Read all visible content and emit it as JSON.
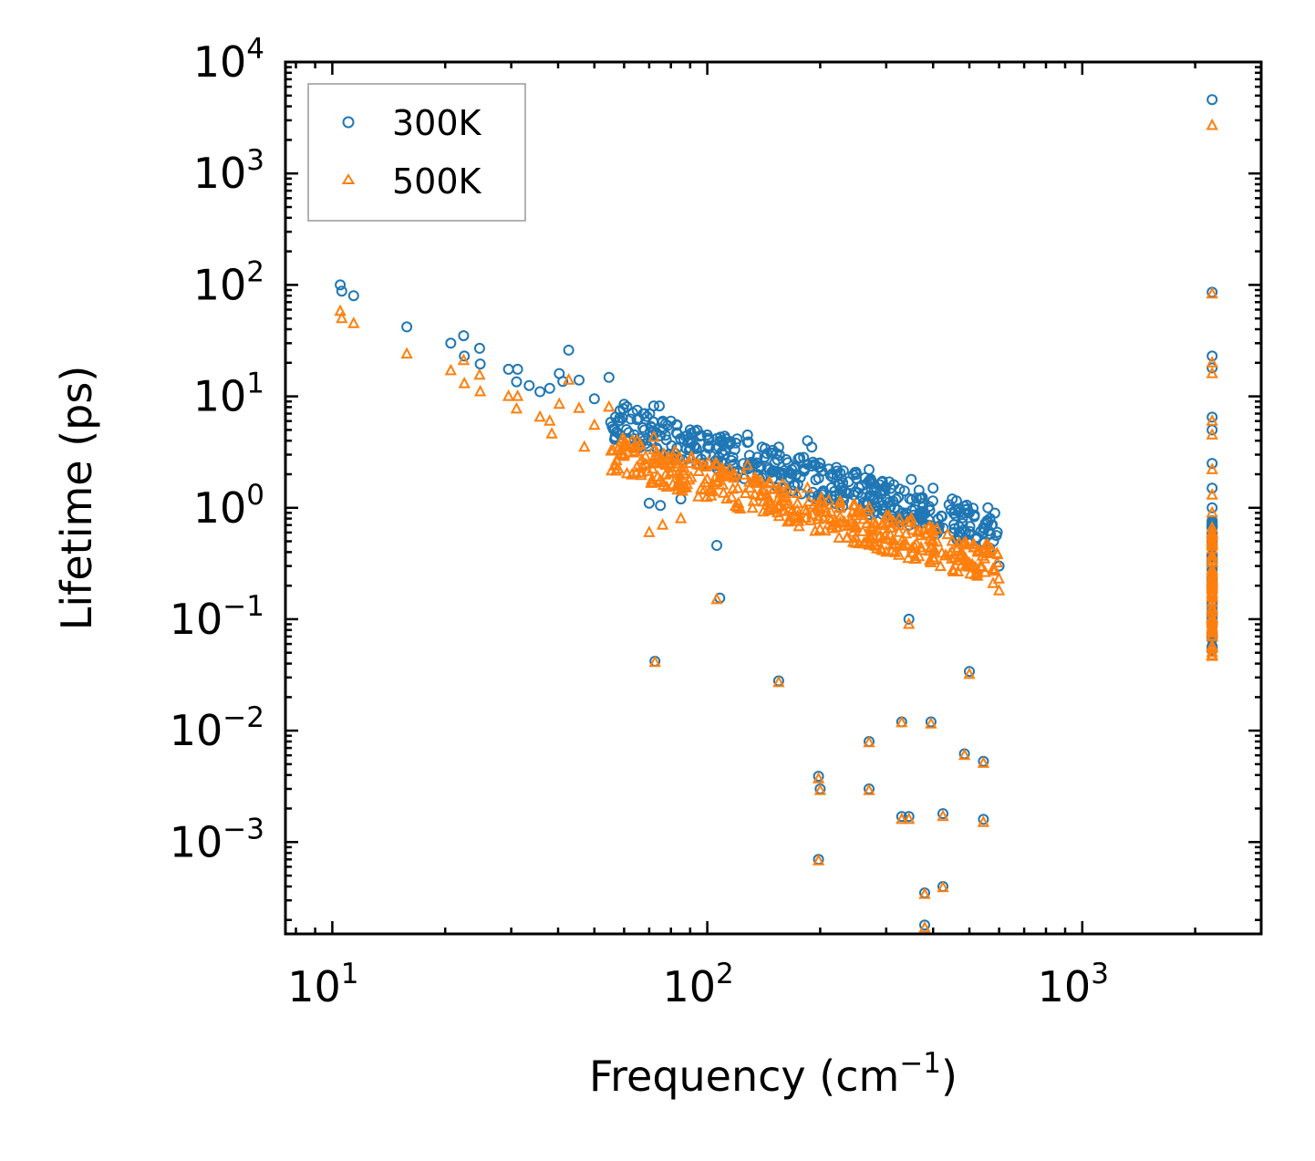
{
  "chart_data": {
    "type": "scatter",
    "title": "",
    "xlabel": "Frequency (cm",
    "xlabel_sup": "−1",
    "xlabel_tail": ")",
    "ylabel": "Lifetime (ps)",
    "xscale": "log",
    "yscale": "log",
    "xlim": [
      7.5,
      3000
    ],
    "ylim": [
      0.00015,
      10000
    ],
    "x_ticks": [
      {
        "value": 10,
        "base": "10",
        "exp": "1"
      },
      {
        "value": 100,
        "base": "10",
        "exp": "2"
      },
      {
        "value": 1000,
        "base": "10",
        "exp": "3"
      }
    ],
    "y_ticks": [
      {
        "value": 0.001,
        "base": "10",
        "exp": "−3"
      },
      {
        "value": 0.01,
        "base": "10",
        "exp": "−2"
      },
      {
        "value": 0.1,
        "base": "10",
        "exp": "−1"
      },
      {
        "value": 1,
        "base": "10",
        "exp": "0"
      },
      {
        "value": 10,
        "base": "10",
        "exp": "1"
      },
      {
        "value": 100,
        "base": "10",
        "exp": "2"
      },
      {
        "value": 1000,
        "base": "10",
        "exp": "3"
      },
      {
        "value": 10000,
        "base": "10",
        "exp": "4"
      }
    ],
    "legend_position": "top-left",
    "grid": false,
    "series": [
      {
        "name": "300K",
        "marker": "circle",
        "color": "#1f77b4",
        "points": [
          [
            10.5,
            100
          ],
          [
            10.6,
            88
          ],
          [
            11.4,
            80
          ],
          [
            15.8,
            42
          ],
          [
            20.7,
            30
          ],
          [
            22.4,
            35
          ],
          [
            22.5,
            23
          ],
          [
            24.7,
            27
          ],
          [
            24.8,
            19.5
          ],
          [
            29.5,
            17.5
          ],
          [
            31.2,
            17.5
          ],
          [
            31.0,
            13.5
          ],
          [
            33.5,
            12.5
          ],
          [
            35.8,
            11
          ],
          [
            38.0,
            11.8
          ],
          [
            40.3,
            16
          ],
          [
            41.2,
            13.6
          ],
          [
            42.7,
            26
          ],
          [
            45.5,
            14
          ],
          [
            50.0,
            9.5
          ],
          [
            54.7,
            14.8
          ],
          [
            60.0,
            8.5
          ],
          [
            65.0,
            7.5
          ],
          [
            68.0,
            7.0
          ],
          [
            70.0,
            1.1
          ],
          [
            72.0,
            8.2
          ],
          [
            74.5,
            8.2
          ],
          [
            75.0,
            1.05
          ],
          [
            80.0,
            6.0
          ],
          [
            85.0,
            1.2
          ],
          [
            90.0,
            5.0
          ],
          [
            100.0,
            4.5
          ],
          [
            106.0,
            0.46
          ],
          [
            108.0,
            0.155
          ],
          [
            110.0,
            4.0
          ],
          [
            128.0,
            4.5
          ],
          [
            140.0,
            3.5
          ],
          [
            155.0,
            3.5
          ],
          [
            185.0,
            4.0
          ],
          [
            190.0,
            3.5
          ],
          [
            200.0,
            2.5
          ],
          [
            250.0,
            2.0
          ],
          [
            270.0,
            2.2
          ],
          [
            300.0,
            1.2
          ],
          [
            350.0,
            1.8
          ],
          [
            400.0,
            1.5
          ],
          [
            450.0,
            1.2
          ],
          [
            500.0,
            0.9
          ],
          [
            560.0,
            1.0
          ],
          [
            580.0,
            0.5
          ],
          [
            600.0,
            0.3
          ],
          [
            72.5,
            0.042
          ],
          [
            155.0,
            0.028
          ],
          [
            198.0,
            0.0039
          ],
          [
            200.0,
            0.003
          ],
          [
            198.0,
            0.0007
          ],
          [
            270.0,
            0.008
          ],
          [
            270.0,
            0.003
          ],
          [
            330.0,
            0.012
          ],
          [
            330.0,
            0.0017
          ],
          [
            345.0,
            0.0017
          ],
          [
            345.0,
            0.1
          ],
          [
            380.0,
            0.00035
          ],
          [
            380.0,
            0.00018
          ],
          [
            395.0,
            0.012
          ],
          [
            425.0,
            0.0018
          ],
          [
            425.0,
            0.0004
          ],
          [
            485.0,
            0.0062
          ],
          [
            500.0,
            0.034
          ],
          [
            545.0,
            0.0053
          ],
          [
            545.0,
            0.0016
          ],
          [
            2220,
            4600
          ],
          [
            2220,
            86
          ],
          [
            2220,
            23
          ],
          [
            2220,
            18
          ],
          [
            2220,
            6.5
          ],
          [
            2220,
            5.0
          ],
          [
            2220,
            2.5
          ],
          [
            2220,
            1.5
          ],
          [
            2220,
            1.0
          ],
          [
            2220,
            0.6
          ]
        ]
      },
      {
        "name": "500K",
        "marker": "triangle",
        "color": "#ff7f0e",
        "points": [
          [
            10.5,
            58
          ],
          [
            10.6,
            50
          ],
          [
            11.4,
            45
          ],
          [
            15.8,
            24
          ],
          [
            20.7,
            17
          ],
          [
            22.4,
            21
          ],
          [
            22.5,
            13
          ],
          [
            24.7,
            15.5
          ],
          [
            24.8,
            11
          ],
          [
            29.5,
            10
          ],
          [
            31.2,
            10
          ],
          [
            31.0,
            7.7
          ],
          [
            35.8,
            6.5
          ],
          [
            38.0,
            6.0
          ],
          [
            38.5,
            4.6
          ],
          [
            40.3,
            8.5
          ],
          [
            42.7,
            14
          ],
          [
            45.5,
            7.8
          ],
          [
            47.0,
            3.5
          ],
          [
            50.0,
            5.5
          ],
          [
            54.7,
            8.0
          ],
          [
            60.0,
            3.0
          ],
          [
            65.0,
            4.0
          ],
          [
            70.0,
            0.6
          ],
          [
            72.0,
            4.3
          ],
          [
            74.5,
            2.5
          ],
          [
            76.0,
            0.7
          ],
          [
            80.0,
            2.5
          ],
          [
            85.0,
            0.8
          ],
          [
            90.0,
            2.5
          ],
          [
            100.0,
            1.8
          ],
          [
            106.0,
            0.15
          ],
          [
            110.0,
            1.6
          ],
          [
            128.0,
            2.4
          ],
          [
            140.0,
            1.3
          ],
          [
            155.0,
            1.5
          ],
          [
            185.0,
            1.5
          ],
          [
            200.0,
            1.1
          ],
          [
            250.0,
            0.9
          ],
          [
            270.0,
            1.0
          ],
          [
            300.0,
            0.4
          ],
          [
            350.0,
            0.8
          ],
          [
            400.0,
            0.5
          ],
          [
            450.0,
            0.5
          ],
          [
            500.0,
            0.3
          ],
          [
            560.0,
            0.4
          ],
          [
            600.0,
            0.18
          ],
          [
            72.5,
            0.041
          ],
          [
            155.0,
            0.027
          ],
          [
            198.0,
            0.0037
          ],
          [
            200.0,
            0.0029
          ],
          [
            198.0,
            0.00068
          ],
          [
            270.0,
            0.0078
          ],
          [
            270.0,
            0.0029
          ],
          [
            330.0,
            0.0118
          ],
          [
            330.0,
            0.0016
          ],
          [
            345.0,
            0.0016
          ],
          [
            345.0,
            0.09
          ],
          [
            380.0,
            0.00034
          ],
          [
            380.0,
            0.00017
          ],
          [
            395.0,
            0.0115
          ],
          [
            425.0,
            0.0017
          ],
          [
            425.0,
            0.00039
          ],
          [
            485.0,
            0.006
          ],
          [
            500.0,
            0.032
          ],
          [
            545.0,
            0.0051
          ],
          [
            545.0,
            0.0015
          ],
          [
            2220,
            2700
          ],
          [
            2220,
            83
          ],
          [
            2220,
            20
          ],
          [
            2220,
            16
          ],
          [
            2220,
            6.0
          ],
          [
            2220,
            4.5
          ],
          [
            2220,
            2.2
          ],
          [
            2220,
            1.3
          ],
          [
            2220,
            0.9
          ],
          [
            2220,
            0.5
          ]
        ]
      }
    ],
    "dense_clusters": [
      {
        "series": "300K",
        "x_range": [
          55,
          600
        ],
        "y_center_at_60": 6.0,
        "y_center_at_600": 0.6,
        "spread": 0.35,
        "count": 420
      },
      {
        "series": "500K",
        "x_range": [
          55,
          600
        ],
        "y_center_at_60": 3.2,
        "y_center_at_600": 0.3,
        "spread": 0.35,
        "count": 420
      },
      {
        "series": "300K",
        "x_fixed": 2220,
        "y_range": [
          0.05,
          0.8
        ],
        "count": 70
      },
      {
        "series": "500K",
        "x_fixed": 2220,
        "y_range": [
          0.045,
          0.7
        ],
        "count": 70
      }
    ]
  }
}
